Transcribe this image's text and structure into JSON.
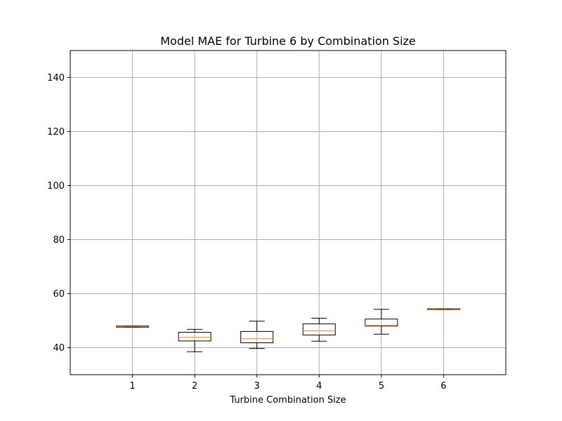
{
  "chart_data": {
    "type": "box",
    "title": "Model MAE for Turbine 6 by Combination Size",
    "xlabel": "Turbine Combination Size",
    "ylabel": "",
    "categories": [
      "1",
      "2",
      "3",
      "4",
      "5",
      "6"
    ],
    "ylim": [
      30,
      150
    ],
    "yticks": [
      40,
      60,
      80,
      100,
      120,
      140
    ],
    "grid": true,
    "boxes": [
      {
        "category": "1",
        "whisker_low": 47.6,
        "q1": 47.6,
        "median": 47.8,
        "q3": 48.0,
        "whisker_high": 48.0
      },
      {
        "category": "2",
        "whisker_low": 38.5,
        "q1": 42.5,
        "median": 43.8,
        "q3": 45.7,
        "whisker_high": 46.8
      },
      {
        "category": "3",
        "whisker_low": 39.7,
        "q1": 41.8,
        "median": 43.3,
        "q3": 46.0,
        "whisker_high": 49.8
      },
      {
        "category": "4",
        "whisker_low": 42.4,
        "q1": 44.7,
        "median": 46.2,
        "q3": 48.8,
        "whisker_high": 50.9
      },
      {
        "category": "5",
        "whisker_low": 45.0,
        "q1": 48.0,
        "median": 48.2,
        "q3": 50.6,
        "whisker_high": 54.2
      },
      {
        "category": "6",
        "whisker_low": 54.1,
        "q1": 54.1,
        "median": 54.2,
        "q3": 54.4,
        "whisker_high": 54.4
      }
    ]
  },
  "colors": {
    "box": "#000000",
    "median": "#ff7f0e",
    "grid": "#b0b0b0",
    "axes": "#000000",
    "background": "#ffffff"
  }
}
